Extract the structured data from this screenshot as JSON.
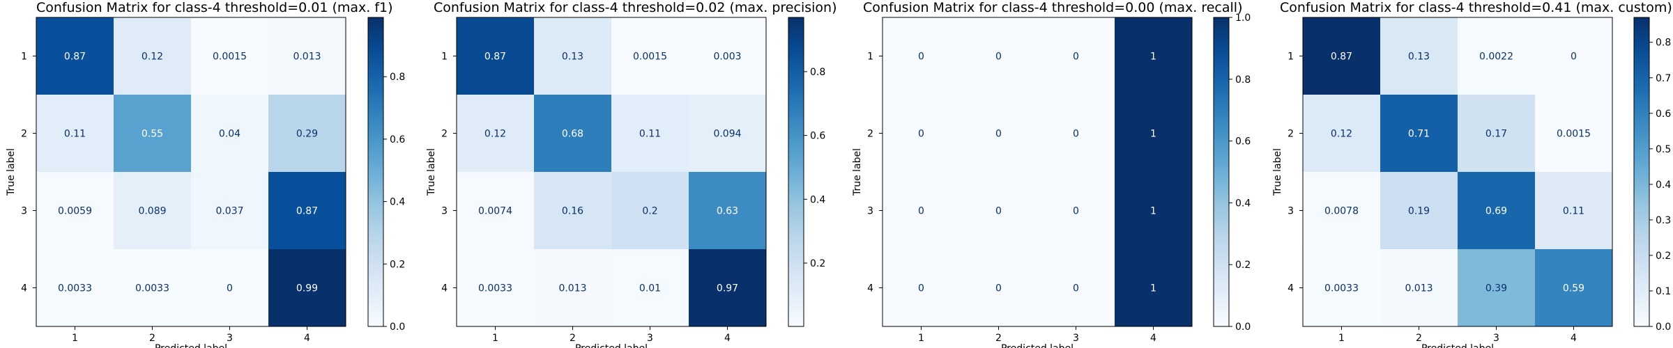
{
  "chart_data": [
    {
      "type": "heatmap",
      "title": "Confusion Matrix for class-4 threshold=0.01 (max. f1)",
      "xlabel": "Predicted label",
      "ylabel": "True label",
      "x_categories": [
        "1",
        "2",
        "3",
        "4"
      ],
      "y_categories": [
        "1",
        "2",
        "3",
        "4"
      ],
      "values": [
        [
          0.87,
          0.12,
          0.0015,
          0.013
        ],
        [
          0.11,
          0.55,
          0.04,
          0.29
        ],
        [
          0.0059,
          0.089,
          0.037,
          0.87
        ],
        [
          0.0033,
          0.0033,
          0,
          0.99
        ]
      ],
      "labels": [
        [
          "0.87",
          "0.12",
          "0.0015",
          "0.013"
        ],
        [
          "0.11",
          "0.55",
          "0.04",
          "0.29"
        ],
        [
          "0.0059",
          "0.089",
          "0.037",
          "0.87"
        ],
        [
          "0.0033",
          "0.0033",
          "0",
          "0.99"
        ]
      ],
      "colorbar": {
        "min": 0,
        "max": 0.99,
        "ticks": [
          "0.0",
          "0.2",
          "0.4",
          "0.6",
          "0.8"
        ],
        "tick_values": [
          0,
          0.2,
          0.4,
          0.6,
          0.8
        ]
      },
      "colormap": "Blues"
    },
    {
      "type": "heatmap",
      "title": "Confusion Matrix for class-4 threshold=0.02 (max. precision)",
      "xlabel": "Predicted label",
      "ylabel": "True label",
      "x_categories": [
        "1",
        "2",
        "3",
        "4"
      ],
      "y_categories": [
        "1",
        "2",
        "3",
        "4"
      ],
      "values": [
        [
          0.87,
          0.13,
          0.0015,
          0.003
        ],
        [
          0.12,
          0.68,
          0.11,
          0.094
        ],
        [
          0.0074,
          0.16,
          0.2,
          0.63
        ],
        [
          0.0033,
          0.013,
          0.01,
          0.97
        ]
      ],
      "labels": [
        [
          "0.87",
          "0.13",
          "0.0015",
          "0.003"
        ],
        [
          "0.12",
          "0.68",
          "0.11",
          "0.094"
        ],
        [
          "0.0074",
          "0.16",
          "0.2",
          "0.63"
        ],
        [
          "0.0033",
          "0.013",
          "0.01",
          "0.97"
        ]
      ],
      "colorbar": {
        "min": 0.0015,
        "max": 0.97,
        "ticks": [
          "0.2",
          "0.4",
          "0.6",
          "0.8"
        ],
        "tick_values": [
          0.2,
          0.4,
          0.6,
          0.8
        ]
      },
      "colormap": "Blues"
    },
    {
      "type": "heatmap",
      "title": "Confusion Matrix for class-4 threshold=0.00 (max. recall)",
      "xlabel": "Predicted label",
      "ylabel": "True label",
      "x_categories": [
        "1",
        "2",
        "3",
        "4"
      ],
      "y_categories": [
        "1",
        "2",
        "3",
        "4"
      ],
      "values": [
        [
          0,
          0,
          0,
          1
        ],
        [
          0,
          0,
          0,
          1
        ],
        [
          0,
          0,
          0,
          1
        ],
        [
          0,
          0,
          0,
          1
        ]
      ],
      "labels": [
        [
          "0",
          "0",
          "0",
          "1"
        ],
        [
          "0",
          "0",
          "0",
          "1"
        ],
        [
          "0",
          "0",
          "0",
          "1"
        ],
        [
          "0",
          "0",
          "0",
          "1"
        ]
      ],
      "colorbar": {
        "min": 0,
        "max": 1,
        "ticks": [
          "0.0",
          "0.2",
          "0.4",
          "0.6",
          "0.8",
          "1.0"
        ],
        "tick_values": [
          0,
          0.2,
          0.4,
          0.6,
          0.8,
          1.0
        ]
      },
      "colormap": "Blues"
    },
    {
      "type": "heatmap",
      "title": "Confusion Matrix for class-4 threshold=0.41 (max. custom)",
      "xlabel": "Predicted label",
      "ylabel": "True label",
      "x_categories": [
        "1",
        "2",
        "3",
        "4"
      ],
      "y_categories": [
        "1",
        "2",
        "3",
        "4"
      ],
      "values": [
        [
          0.87,
          0.13,
          0.0022,
          0
        ],
        [
          0.12,
          0.71,
          0.17,
          0.0015
        ],
        [
          0.0078,
          0.19,
          0.69,
          0.11
        ],
        [
          0.0033,
          0.013,
          0.39,
          0.59
        ]
      ],
      "labels": [
        [
          "0.87",
          "0.13",
          "0.0022",
          "0"
        ],
        [
          "0.12",
          "0.71",
          "0.17",
          "0.0015"
        ],
        [
          "0.0078",
          "0.19",
          "0.69",
          "0.11"
        ],
        [
          "0.0033",
          "0.013",
          "0.39",
          "0.59"
        ]
      ],
      "colorbar": {
        "min": 0,
        "max": 0.87,
        "ticks": [
          "0.0",
          "0.1",
          "0.2",
          "0.3",
          "0.4",
          "0.5",
          "0.6",
          "0.7",
          "0.8"
        ],
        "tick_values": [
          0,
          0.1,
          0.2,
          0.3,
          0.4,
          0.5,
          0.6,
          0.7,
          0.8
        ]
      },
      "colormap": "Blues"
    }
  ]
}
